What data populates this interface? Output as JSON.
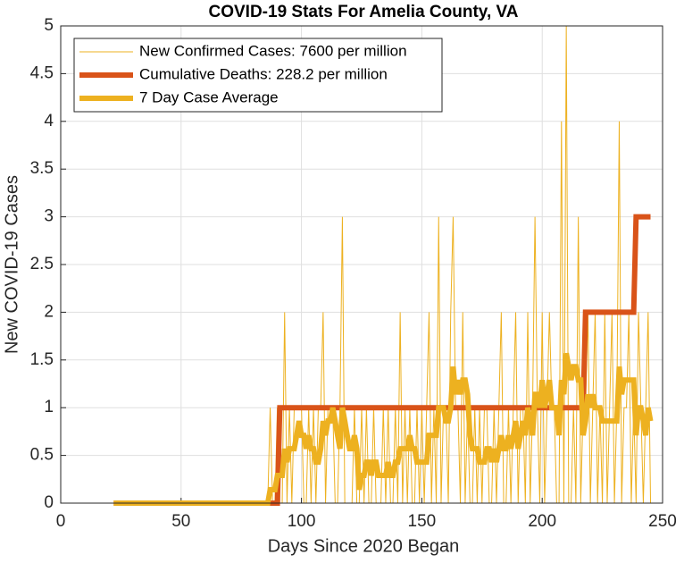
{
  "chart_data": {
    "type": "line",
    "title": "COVID-19 Stats For Amelia County, VA",
    "xlabel": "Days Since 2020 Began",
    "ylabel": "New COVID-19 Cases",
    "xlim": [
      0,
      250
    ],
    "xticks": [
      0,
      50,
      100,
      150,
      200,
      250
    ],
    "ylim": [
      0,
      5
    ],
    "yticks": [
      0,
      0.5,
      1,
      1.5,
      2,
      2.5,
      3,
      3.5,
      4,
      4.5,
      5
    ],
    "grid": true,
    "legend": "upper-left",
    "x": [
      22,
      23,
      24,
      25,
      26,
      27,
      28,
      29,
      30,
      31,
      32,
      33,
      34,
      35,
      36,
      37,
      38,
      39,
      40,
      41,
      42,
      43,
      44,
      45,
      46,
      47,
      48,
      49,
      50,
      51,
      52,
      53,
      54,
      55,
      56,
      57,
      58,
      59,
      60,
      61,
      62,
      63,
      64,
      65,
      66,
      67,
      68,
      69,
      70,
      71,
      72,
      73,
      74,
      75,
      76,
      77,
      78,
      79,
      80,
      81,
      82,
      83,
      84,
      85,
      86,
      87,
      88,
      89,
      90,
      91,
      92,
      93,
      94,
      95,
      96,
      97,
      98,
      99,
      100,
      101,
      102,
      103,
      104,
      105,
      106,
      107,
      108,
      109,
      110,
      111,
      112,
      113,
      114,
      115,
      116,
      117,
      118,
      119,
      120,
      121,
      122,
      123,
      124,
      125,
      126,
      127,
      128,
      129,
      130,
      131,
      132,
      133,
      134,
      135,
      136,
      137,
      138,
      139,
      140,
      141,
      142,
      143,
      144,
      145,
      146,
      147,
      148,
      149,
      150,
      151,
      152,
      153,
      154,
      155,
      156,
      157,
      158,
      159,
      160,
      161,
      162,
      163,
      164,
      165,
      166,
      167,
      168,
      169,
      170,
      171,
      172,
      173,
      174,
      175,
      176,
      177,
      178,
      179,
      180,
      181,
      182,
      183,
      184,
      185,
      186,
      187,
      188,
      189,
      190,
      191,
      192,
      193,
      194,
      195,
      196,
      197,
      198,
      199,
      200,
      201,
      202,
      203,
      204,
      205,
      206,
      207,
      208,
      209,
      210,
      211,
      212,
      213,
      214,
      215,
      216,
      217,
      218,
      219,
      220,
      221,
      222,
      223,
      224,
      225,
      226,
      227,
      228,
      229,
      230,
      231,
      232,
      233,
      234,
      235,
      236,
      237,
      238,
      239,
      240,
      241,
      242,
      243,
      244,
      245
    ],
    "series": [
      {
        "name": "New Confirmed Cases: 7600 per million",
        "color": "#EDB120",
        "width": 1,
        "values": [
          0,
          0,
          0,
          0,
          0,
          0,
          0,
          0,
          0,
          0,
          0,
          0,
          0,
          0,
          0,
          0,
          0,
          0,
          0,
          0,
          0,
          0,
          0,
          0,
          0,
          0,
          0,
          0,
          0,
          0,
          0,
          0,
          0,
          0,
          0,
          0,
          0,
          0,
          0,
          0,
          0,
          0,
          0,
          0,
          0,
          0,
          0,
          0,
          0,
          0,
          0,
          0,
          0,
          0,
          0,
          0,
          0,
          0,
          0,
          0,
          0,
          0,
          0,
          0,
          0,
          1,
          0,
          0,
          1,
          0,
          0,
          2,
          0,
          1,
          0,
          1,
          1,
          1,
          1,
          0,
          0,
          1,
          0,
          1,
          0,
          1,
          1,
          2,
          0,
          1,
          1,
          1,
          0,
          0,
          1,
          3,
          0,
          0,
          0,
          0,
          1,
          0,
          0,
          1,
          0,
          1,
          0,
          0,
          1,
          0,
          0,
          0,
          1,
          0,
          1,
          0,
          0,
          1,
          0,
          2,
          0,
          1,
          0,
          1,
          0,
          0,
          1,
          0,
          1,
          0,
          1,
          2,
          0,
          1,
          0,
          3,
          0,
          1,
          1,
          0,
          2,
          3,
          1,
          1,
          0,
          2,
          0,
          1,
          0,
          0,
          1,
          0,
          1,
          0,
          1,
          1,
          0,
          0,
          1,
          0,
          1,
          2,
          0,
          0,
          1,
          0,
          1,
          2,
          0,
          1,
          1,
          0,
          2,
          0,
          1,
          3,
          1,
          0,
          2,
          0,
          1,
          2,
          1,
          1,
          0,
          0,
          4,
          0,
          5,
          0,
          0,
          1,
          0,
          3,
          0,
          1,
          1,
          2,
          0,
          1,
          2,
          0,
          1,
          0,
          2,
          0,
          1,
          2,
          0,
          1,
          4,
          0,
          1,
          1,
          2,
          0,
          1,
          0,
          2,
          1,
          0,
          1,
          2,
          0
        ]
      },
      {
        "name": "Cumulative Deaths: 228.2 per million",
        "color": "#D95319",
        "width": 6,
        "x": [
          22,
          90,
          91,
          217,
          218,
          238,
          239,
          245
        ],
        "values": [
          0,
          0,
          1,
          1,
          2,
          2,
          3,
          3
        ]
      },
      {
        "name": "7 Day Case Average",
        "color": "#EDB120",
        "width": 6,
        "values": [
          0,
          0,
          0,
          0,
          0,
          0,
          0,
          0,
          0,
          0,
          0,
          0,
          0,
          0,
          0,
          0,
          0,
          0,
          0,
          0,
          0,
          0,
          0,
          0,
          0,
          0,
          0,
          0,
          0,
          0,
          0,
          0,
          0,
          0,
          0,
          0,
          0,
          0,
          0,
          0,
          0,
          0,
          0,
          0,
          0,
          0,
          0,
          0,
          0,
          0,
          0,
          0,
          0,
          0,
          0,
          0,
          0,
          0,
          0,
          0,
          0,
          0,
          0,
          0,
          0,
          0.14,
          0.14,
          0.14,
          0.29,
          0.29,
          0.29,
          0.57,
          0.43,
          0.57,
          0.57,
          0.57,
          0.71,
          0.86,
          0.71,
          0.71,
          0.57,
          0.71,
          0.57,
          0.57,
          0.43,
          0.43,
          0.57,
          0.86,
          0.71,
          0.86,
          0.86,
          1,
          0.86,
          0.71,
          0.57,
          1,
          0.86,
          0.71,
          0.57,
          0.57,
          0.71,
          0.57,
          0.14,
          0.29,
          0.29,
          0.43,
          0.43,
          0.29,
          0.43,
          0.43,
          0.29,
          0.29,
          0.29,
          0.29,
          0.43,
          0.29,
          0.29,
          0.43,
          0.43,
          0.57,
          0.57,
          0.57,
          0.57,
          0.71,
          0.57,
          0.57,
          0.43,
          0.43,
          0.43,
          0.43,
          0.43,
          0.71,
          0.71,
          0.71,
          0.71,
          1,
          1,
          1,
          0.86,
          0.86,
          1,
          1.43,
          1.14,
          1.29,
          1.14,
          1.29,
          1.29,
          1.14,
          0.71,
          0.57,
          0.57,
          0.57,
          0.43,
          0.43,
          0.43,
          0.57,
          0.57,
          0.43,
          0.57,
          0.43,
          0.57,
          0.71,
          0.57,
          0.57,
          0.71,
          0.57,
          0.71,
          0.86,
          0.57,
          0.71,
          0.86,
          0.71,
          1,
          0.86,
          0.71,
          1.14,
          1.14,
          1,
          1.29,
          1,
          1.14,
          1.29,
          1,
          1,
          1,
          0.71,
          1.29,
          1.14,
          1.57,
          1.43,
          1.29,
          1.43,
          1.43,
          1.29,
          1.29,
          0.71,
          0.86,
          1.14,
          1,
          1.14,
          1,
          1,
          1,
          0.86,
          0.86,
          0.86,
          0.86,
          0.86,
          0.86,
          0.86,
          1.43,
          1.14,
          1.29,
          1.29,
          1.29,
          1.29,
          1.29,
          0.71,
          1,
          1,
          0.86,
          0.71,
          1,
          0.86
        ]
      }
    ]
  }
}
